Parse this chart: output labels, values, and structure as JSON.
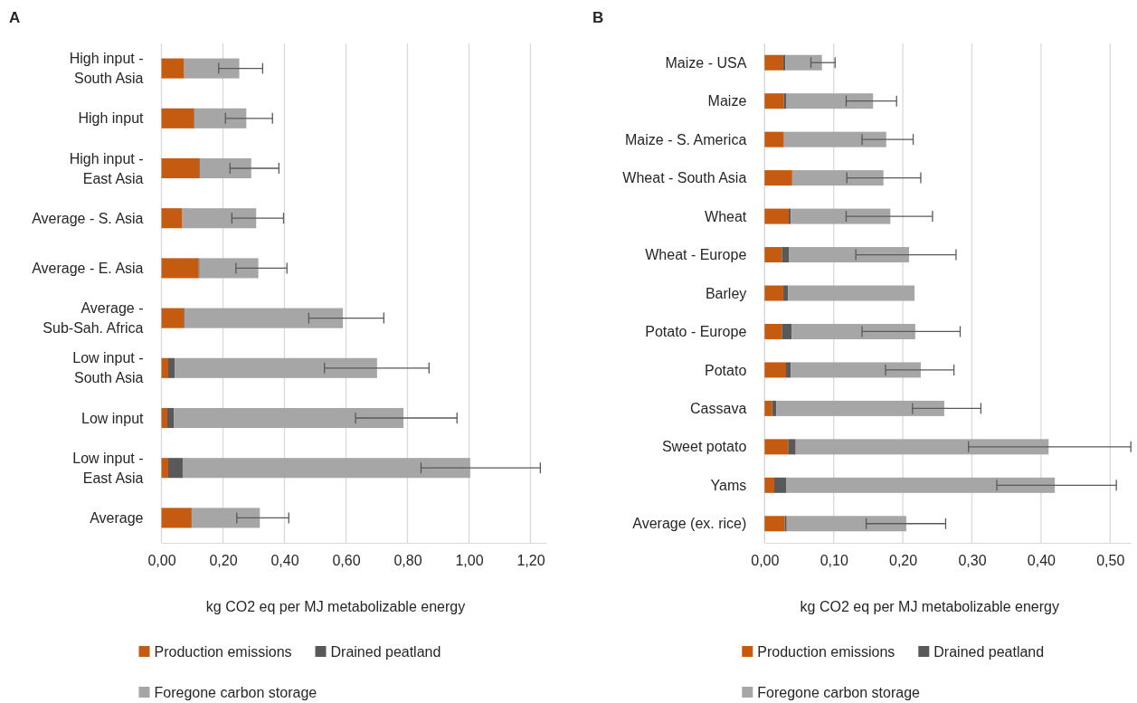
{
  "chart_data": [
    {
      "type": "bar",
      "title": "A",
      "orientation": "horizontal",
      "stacked": true,
      "xlabel": "kg CO2 eq per MJ metabolizable energy",
      "legend": "bottom",
      "grid": "x",
      "categories": [
        "High input - South Asia",
        "High input",
        "High input - East Asia",
        "Average - S. Asia",
        "Average - E. Asia",
        "Average - Sub-Sah. Africa",
        "Low input - South Asia",
        "Low input",
        "Low input - East Asia",
        "Average"
      ],
      "xlim": [
        0,
        1.25
      ],
      "xticks": [
        {
          "value": 0,
          "label": "0,00"
        },
        {
          "value": 0.2,
          "label": "0,20"
        },
        {
          "value": 0.4,
          "label": "0,40"
        },
        {
          "value": 0.6,
          "label": "0,60"
        },
        {
          "value": 0.8,
          "label": "0,80"
        },
        {
          "value": 1.0,
          "label": "1,00"
        },
        {
          "value": 1.2,
          "label": "1,20"
        }
      ],
      "series": [
        {
          "name": "Production emissions",
          "color": "#c55a11",
          "values": [
            0.074,
            0.105,
            0.123,
            0.068,
            0.121,
            0.073,
            0.022,
            0.019,
            0.022,
            0.098
          ]
        },
        {
          "name": "Drained peatland",
          "color": "#595959",
          "values": [
            0,
            0.002,
            0.002,
            0,
            0.003,
            0.002,
            0.021,
            0.021,
            0.047,
            0.002
          ]
        },
        {
          "name": "Foregone carbon storage",
          "color": "#a6a6a6",
          "values": [
            0.179,
            0.169,
            0.167,
            0.24,
            0.191,
            0.515,
            0.658,
            0.747,
            0.935,
            0.22
          ],
          "errors": [
            [
              0.186,
              0.329
            ],
            [
              0.208,
              0.361
            ],
            [
              0.223,
              0.382
            ],
            [
              0.229,
              0.397
            ],
            [
              0.242,
              0.408
            ],
            [
              0.479,
              0.723
            ],
            [
              0.53,
              0.87
            ],
            [
              0.631,
              0.961
            ],
            [
              0.844,
              1.232
            ],
            [
              0.245,
              0.414
            ]
          ]
        }
      ]
    },
    {
      "type": "bar",
      "title": "B",
      "orientation": "horizontal",
      "stacked": true,
      "xlabel": "kg CO2 eq per MJ metabolizable energy",
      "legend": "bottom",
      "grid": "x",
      "categories": [
        "Maize - USA",
        "Maize",
        "Maize - S. America",
        "Wheat - South Asia",
        "Wheat",
        "Wheat - Europe",
        "Barley",
        "Potato - Europe",
        "Potato",
        "Cassava",
        "Sweet potato",
        "Yams",
        "Average (ex. rice)"
      ],
      "xlim": [
        0,
        0.53
      ],
      "xticks": [
        {
          "value": 0,
          "label": "0,00"
        },
        {
          "value": 0.1,
          "label": "0,10"
        },
        {
          "value": 0.2,
          "label": "0,20"
        },
        {
          "value": 0.3,
          "label": "0,30"
        },
        {
          "value": 0.4,
          "label": "0,40"
        },
        {
          "value": 0.5,
          "label": "0,50"
        }
      ],
      "series": [
        {
          "name": "Production emissions",
          "color": "#c55a11",
          "values": [
            0.027,
            0.028,
            0.028,
            0.04,
            0.035,
            0.025,
            0.027,
            0.025,
            0.031,
            0.011,
            0.034,
            0.014,
            0.029
          ]
        },
        {
          "name": "Drained peatland",
          "color": "#595959",
          "values": [
            0.003,
            0.003,
            0,
            0,
            0.003,
            0.01,
            0.007,
            0.014,
            0.007,
            0.006,
            0.011,
            0.017,
            0.003
          ]
        },
        {
          "name": "Foregone carbon storage",
          "color": "#a6a6a6",
          "values": [
            0.053,
            0.126,
            0.148,
            0.132,
            0.144,
            0.174,
            0.183,
            0.179,
            0.188,
            0.243,
            0.366,
            0.389,
            0.173
          ],
          "errors": [
            [
              0.067,
              0.102
            ],
            [
              0.118,
              0.191
            ],
            [
              0.141,
              0.215
            ],
            [
              0.119,
              0.226
            ],
            [
              0.118,
              0.243
            ],
            [
              0.132,
              0.277
            ],
            null,
            [
              0.141,
              0.283
            ],
            [
              0.175,
              0.274
            ],
            [
              0.214,
              0.313
            ],
            [
              0.295,
              0.53
            ],
            [
              0.336,
              0.509
            ],
            [
              0.147,
              0.262
            ]
          ]
        }
      ]
    }
  ]
}
